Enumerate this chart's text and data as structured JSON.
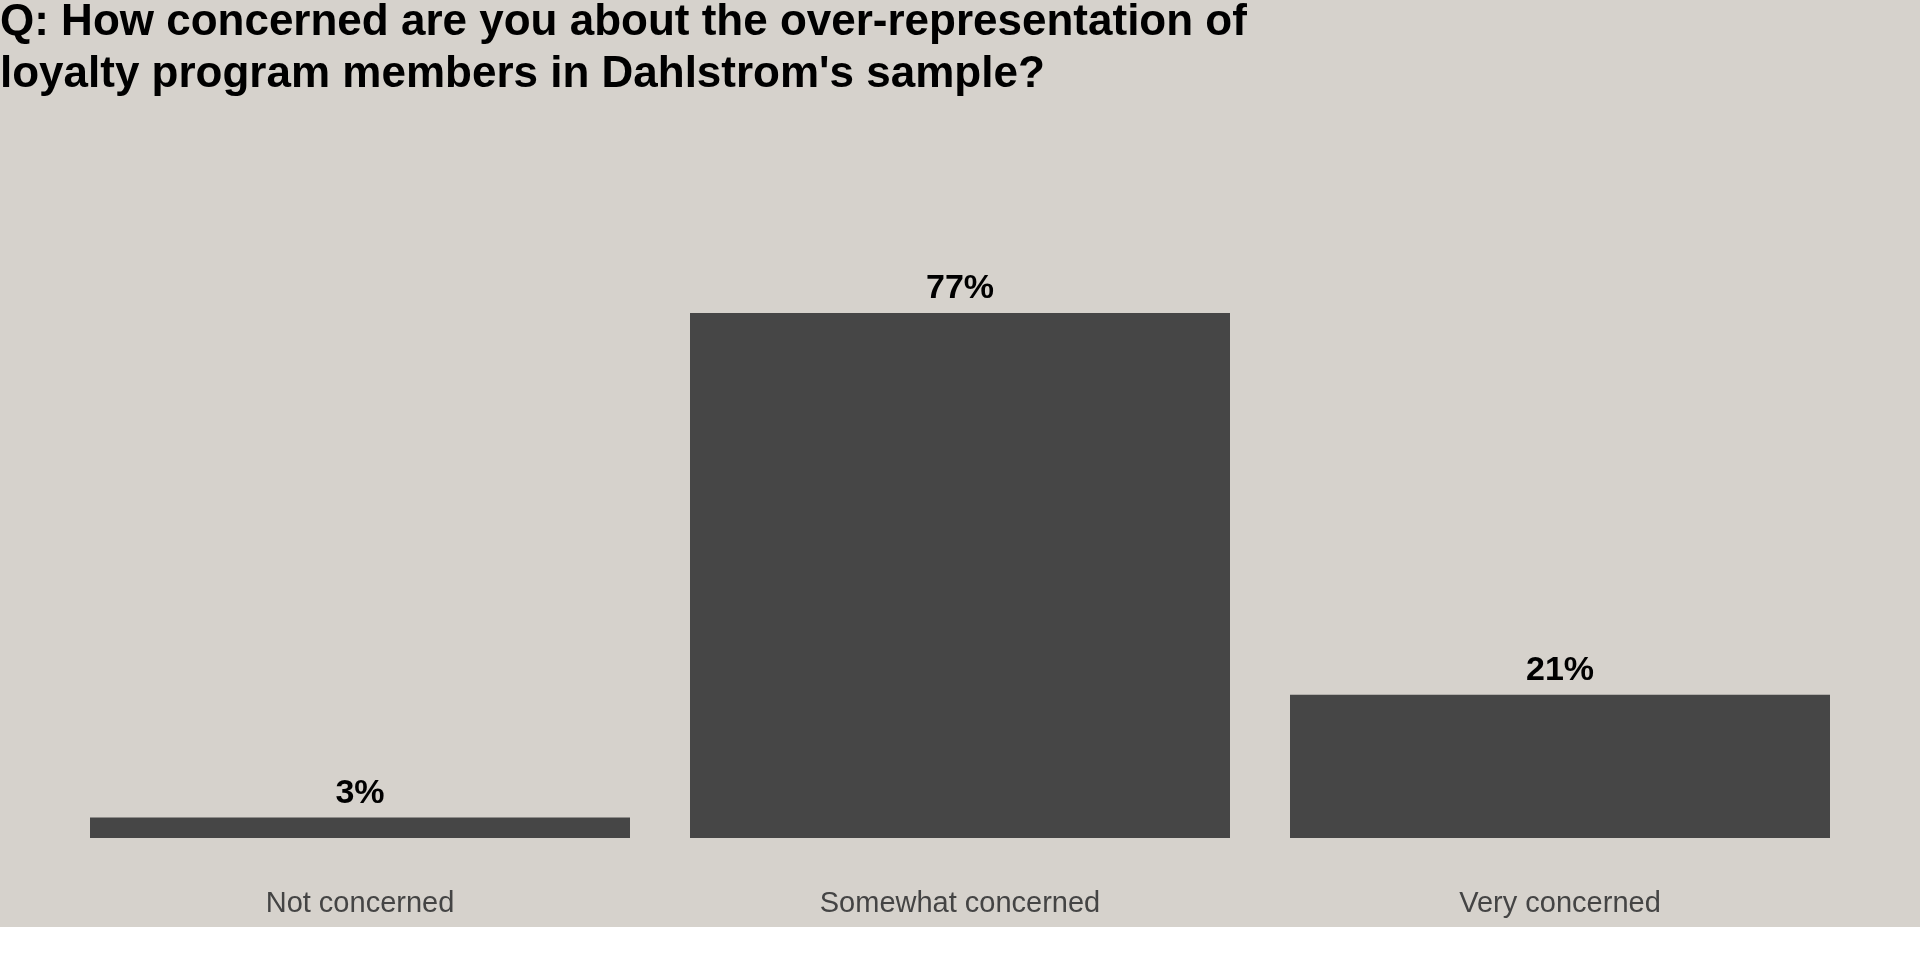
{
  "chart_data": {
    "type": "bar",
    "title": "Q: How concerned are you about the over-representation of loyalty program members in Dahlstrom's sample?",
    "categories": [
      "Not concerned",
      "Somewhat concerned",
      "Very concerned"
    ],
    "values": [
      3,
      77,
      21
    ],
    "value_labels": [
      "3%",
      "77%",
      "21%"
    ],
    "color": "#464646"
  }
}
